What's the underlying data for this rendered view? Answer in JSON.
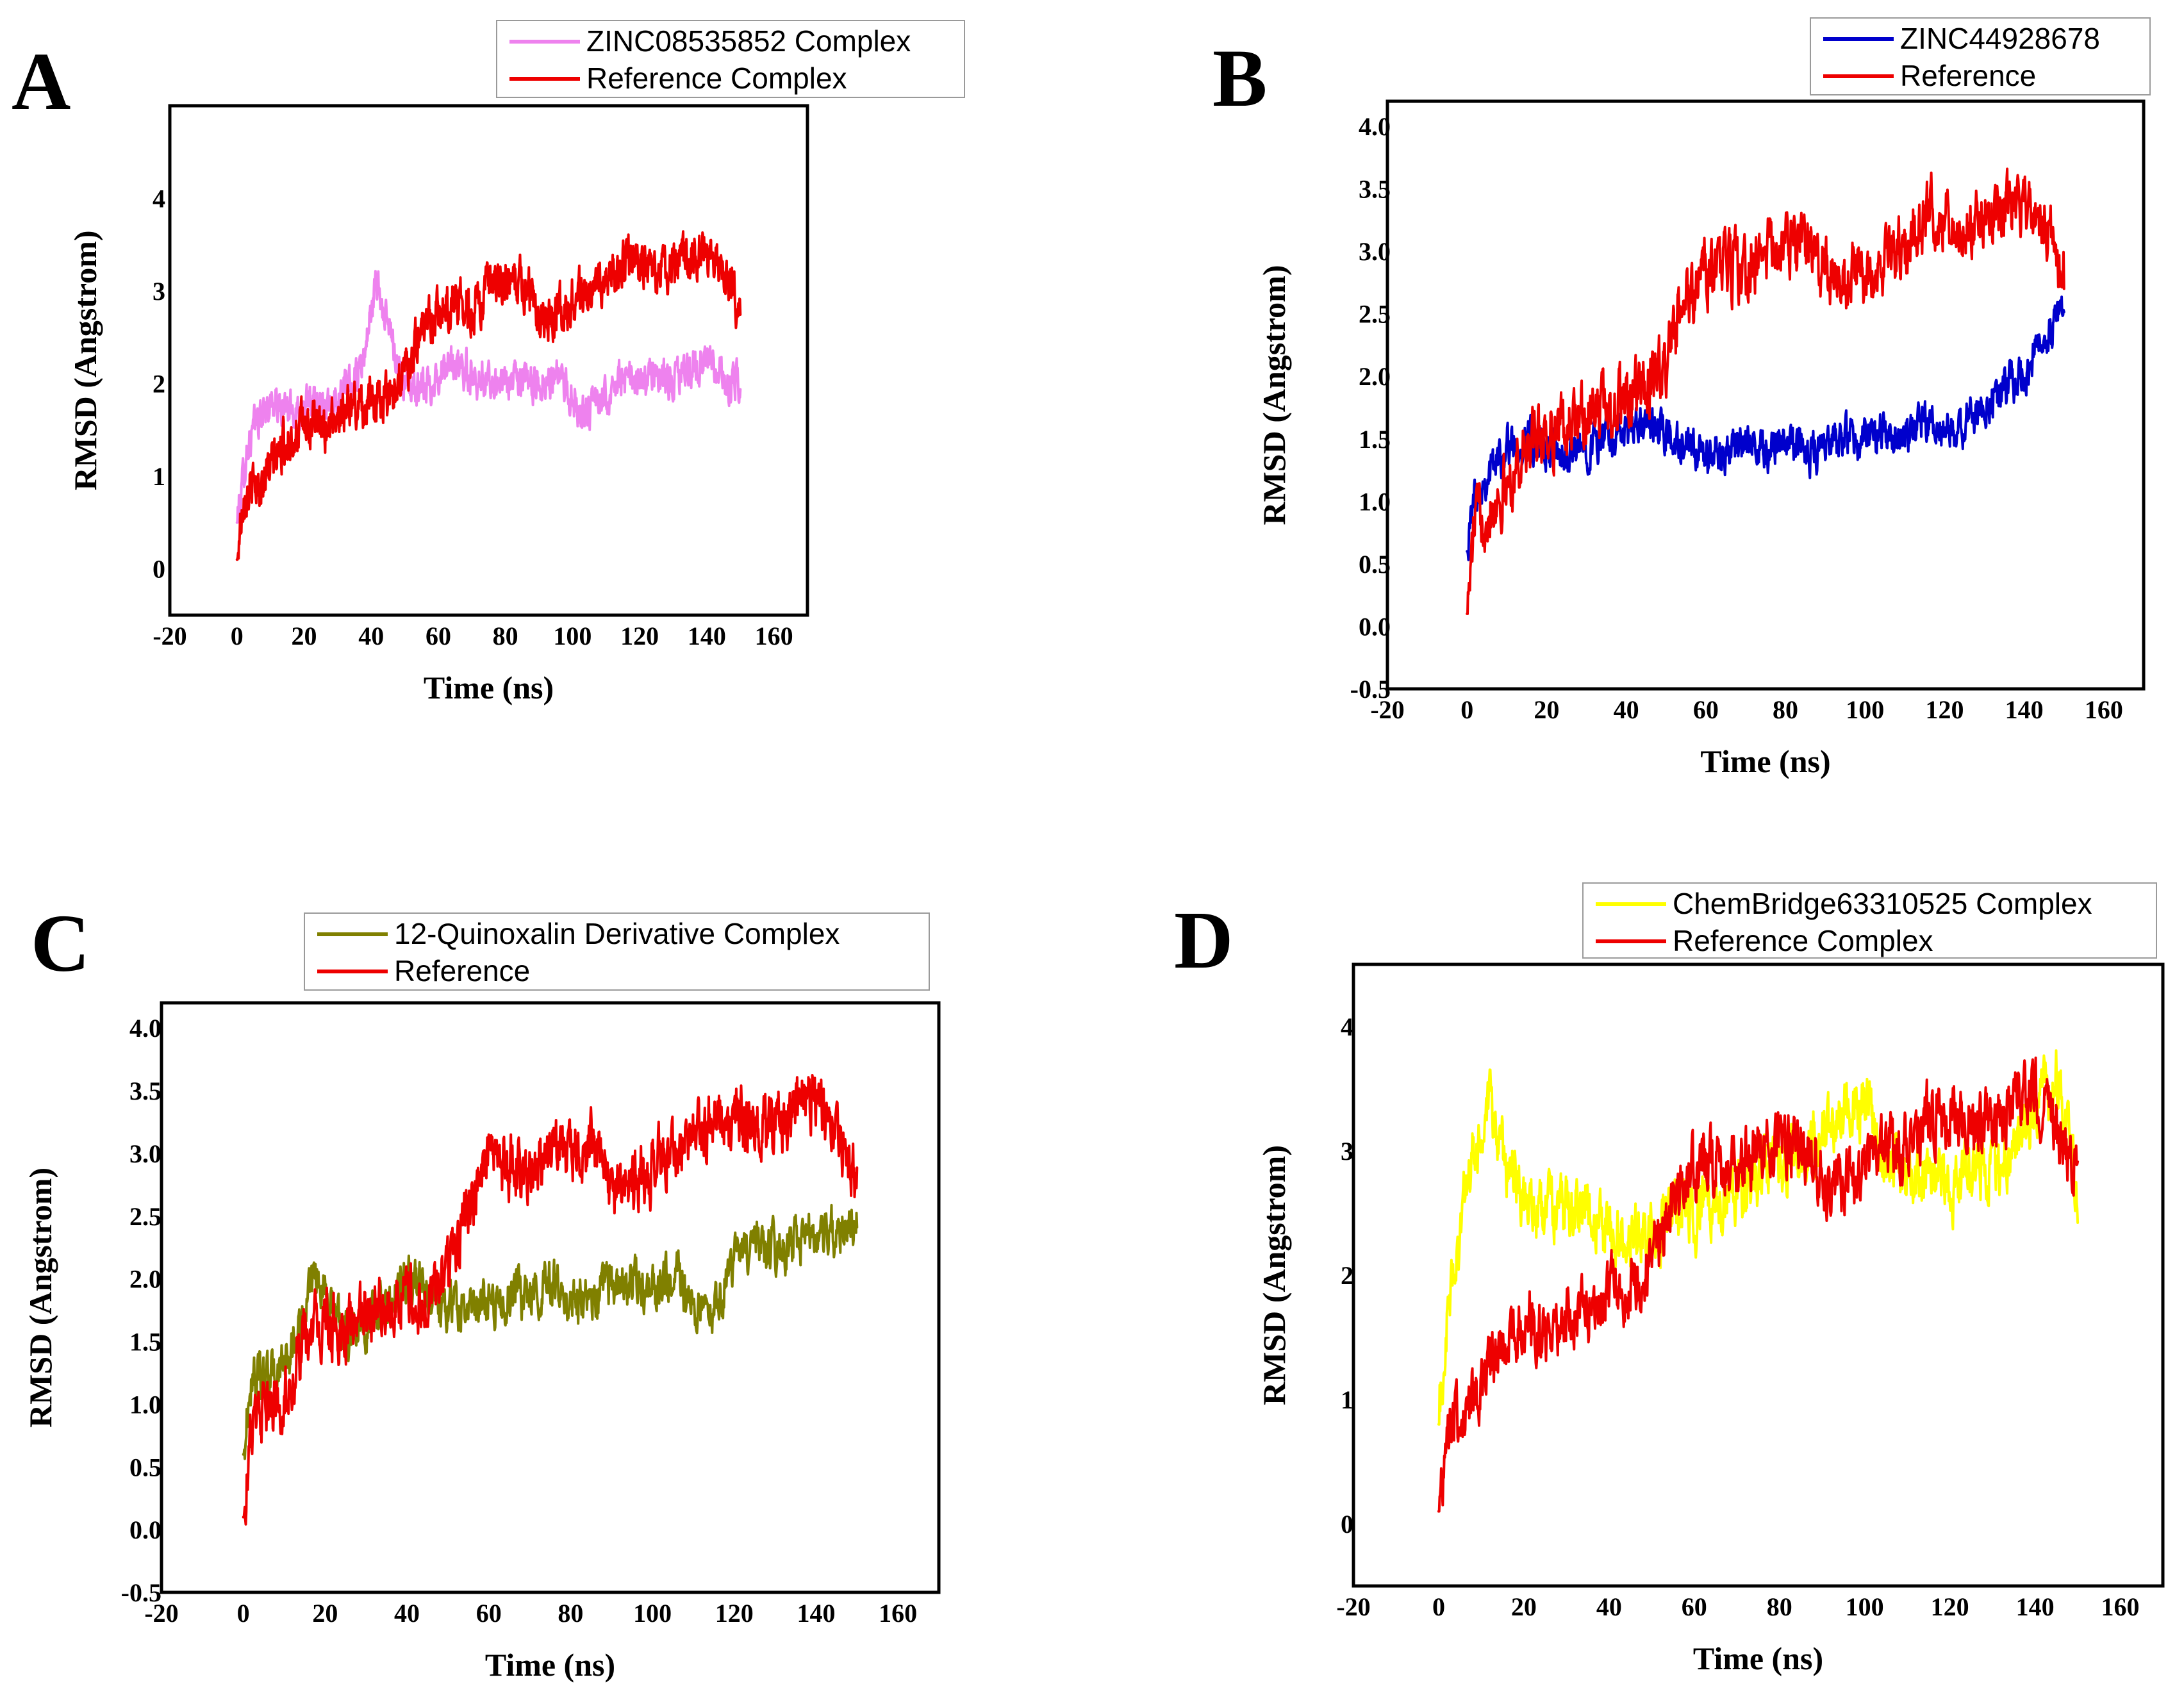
{
  "chart_data": [
    {
      "panel": "A",
      "type": "line",
      "xlabel": "Time (ns)",
      "ylabel": "RMSD (Angstrom)",
      "xlim": [
        -20,
        170
      ],
      "ylim": [
        -0.5,
        5
      ],
      "xticks": [
        "-20",
        "0",
        "20",
        "40",
        "60",
        "80",
        "100",
        "120",
        "140",
        "160"
      ],
      "yticks": [
        "0",
        "1",
        "2",
        "3",
        "4"
      ],
      "legend_position": "top-right",
      "series": [
        {
          "name": "ZINC08535852 Complex",
          "color": "#ee82ee",
          "x": [
            0,
            3,
            6,
            10,
            15,
            20,
            25,
            30,
            35,
            38,
            40,
            42,
            44,
            46,
            50,
            55,
            60,
            65,
            70,
            75,
            80,
            85,
            90,
            95,
            100,
            105,
            110,
            115,
            120,
            125,
            130,
            135,
            140,
            145,
            150
          ],
          "values": [
            0.5,
            1.3,
            1.6,
            1.8,
            1.7,
            1.75,
            1.8,
            1.85,
            2.0,
            2.3,
            2.8,
            3.1,
            2.7,
            2.5,
            2.0,
            1.9,
            2.1,
            2.2,
            2.1,
            2.0,
            2.05,
            2.0,
            2.0,
            2.1,
            1.8,
            1.7,
            1.9,
            2.05,
            2.0,
            2.1,
            2.0,
            2.15,
            2.25,
            2.0,
            2.0
          ],
          "noise": 0.16
        },
        {
          "name": "Reference Complex",
          "color": "#ee0000",
          "x": [
            0,
            2,
            5,
            10,
            15,
            20,
            25,
            30,
            35,
            40,
            45,
            50,
            55,
            60,
            65,
            70,
            75,
            80,
            85,
            90,
            95,
            100,
            105,
            110,
            115,
            120,
            125,
            130,
            135,
            140,
            145,
            150
          ],
          "values": [
            0.1,
            0.85,
            0.85,
            1.1,
            1.4,
            1.55,
            1.5,
            1.7,
            1.75,
            1.8,
            1.9,
            2.1,
            2.6,
            2.8,
            2.9,
            2.8,
            3.0,
            3.05,
            3.1,
            2.8,
            2.75,
            2.9,
            3.0,
            3.05,
            3.3,
            3.3,
            3.2,
            3.25,
            3.4,
            3.45,
            3.2,
            2.8
          ],
          "noise": 0.2
        }
      ]
    },
    {
      "panel": "B",
      "type": "line",
      "xlabel": "Time (ns)",
      "ylabel": "RMSD (Angstrom)",
      "xlim": [
        -20,
        170
      ],
      "ylim": [
        -0.5,
        4.2
      ],
      "xticks": [
        "-20",
        "0",
        "20",
        "40",
        "60",
        "80",
        "100",
        "120",
        "140",
        "160"
      ],
      "yticks": [
        "-0.5",
        "0.0",
        "0.5",
        "1.0",
        "1.5",
        "2.0",
        "2.5",
        "3.0",
        "3.5",
        "4.0"
      ],
      "legend_position": "top-right",
      "series": [
        {
          "name": "ZINC44928678",
          "color": "#0000cc",
          "x": [
            0,
            2,
            5,
            10,
            15,
            20,
            25,
            30,
            35,
            40,
            45,
            50,
            55,
            60,
            65,
            70,
            75,
            80,
            85,
            90,
            95,
            100,
            105,
            110,
            115,
            120,
            125,
            130,
            135,
            140,
            145,
            150
          ],
          "values": [
            0.6,
            1.1,
            1.2,
            1.45,
            1.5,
            1.4,
            1.35,
            1.45,
            1.5,
            1.55,
            1.6,
            1.55,
            1.4,
            1.35,
            1.4,
            1.45,
            1.4,
            1.55,
            1.4,
            1.45,
            1.5,
            1.5,
            1.55,
            1.5,
            1.6,
            1.5,
            1.6,
            1.8,
            1.9,
            2.0,
            2.3,
            2.55
          ],
          "noise": 0.13
        },
        {
          "name": "Reference",
          "color": "#ee0000",
          "x": [
            0,
            2,
            5,
            10,
            15,
            20,
            25,
            30,
            35,
            40,
            45,
            50,
            55,
            60,
            65,
            70,
            75,
            80,
            85,
            90,
            95,
            100,
            105,
            110,
            115,
            120,
            125,
            130,
            135,
            140,
            145,
            150
          ],
          "values": [
            0.1,
            0.85,
            0.95,
            1.1,
            1.45,
            1.55,
            1.6,
            1.7,
            1.75,
            1.8,
            1.9,
            2.1,
            2.6,
            2.85,
            2.9,
            2.85,
            3.0,
            3.05,
            3.1,
            2.8,
            2.75,
            2.85,
            2.95,
            3.0,
            3.3,
            3.3,
            3.2,
            3.25,
            3.35,
            3.45,
            3.2,
            2.75
          ],
          "noise": 0.2
        }
      ]
    },
    {
      "panel": "C",
      "type": "line",
      "xlabel": "Time (ns)",
      "ylabel": "RMSD (Angstrom)",
      "xlim": [
        -20,
        170
      ],
      "ylim": [
        -0.5,
        4.2
      ],
      "xticks": [
        "-20",
        "0",
        "20",
        "40",
        "60",
        "80",
        "100",
        "120",
        "140",
        "160"
      ],
      "yticks": [
        "-0.5",
        "0.0",
        "0.5",
        "1.0",
        "1.5",
        "2.0",
        "2.5",
        "3.0",
        "3.5",
        "4.0"
      ],
      "legend_position": "top-right",
      "series": [
        {
          "name": "12-Quinoxalin Derivative Complex",
          "color": "#808000",
          "x": [
            0,
            2,
            5,
            10,
            15,
            18,
            20,
            25,
            30,
            35,
            40,
            45,
            50,
            55,
            60,
            65,
            70,
            75,
            80,
            85,
            90,
            95,
            100,
            105,
            110,
            115,
            120,
            125,
            130,
            135,
            140,
            145,
            150
          ],
          "values": [
            0.6,
            1.2,
            1.2,
            1.3,
            1.7,
            2.0,
            1.9,
            1.6,
            1.65,
            1.8,
            2.0,
            1.9,
            1.8,
            1.75,
            1.8,
            1.85,
            1.9,
            2.0,
            1.8,
            1.85,
            1.95,
            2.0,
            1.9,
            2.05,
            1.8,
            1.75,
            2.1,
            2.3,
            2.25,
            2.3,
            2.35,
            2.4,
            2.45
          ],
          "noise": 0.15
        },
        {
          "name": "Reference",
          "color": "#ee0000",
          "x": [
            0,
            2,
            5,
            10,
            15,
            20,
            25,
            30,
            35,
            40,
            45,
            50,
            55,
            60,
            65,
            70,
            75,
            80,
            85,
            90,
            95,
            100,
            105,
            110,
            115,
            120,
            125,
            130,
            135,
            140,
            145,
            150
          ],
          "values": [
            0.1,
            0.8,
            0.9,
            1.05,
            1.5,
            1.65,
            1.55,
            1.7,
            1.8,
            1.85,
            1.8,
            2.1,
            2.6,
            2.9,
            2.9,
            2.85,
            3.0,
            3.05,
            3.1,
            2.75,
            2.75,
            2.9,
            3.0,
            3.1,
            3.3,
            3.3,
            3.2,
            3.25,
            3.35,
            3.45,
            3.2,
            2.75
          ],
          "noise": 0.2
        }
      ]
    },
    {
      "panel": "D",
      "type": "line",
      "xlabel": "Time (ns)",
      "ylabel": "RMSD (Angstrom)",
      "xlim": [
        -20,
        170
      ],
      "ylim": [
        -0.5,
        4.5
      ],
      "xticks": [
        "-20",
        "0",
        "20",
        "40",
        "60",
        "80",
        "100",
        "120",
        "140",
        "160"
      ],
      "yticks": [
        "0",
        "1",
        "2",
        "3",
        "4"
      ],
      "legend_position": "top-right",
      "series": [
        {
          "name": "ChemBridge63310525 Complex",
          "color": "#ffff00",
          "x": [
            0,
            2,
            5,
            8,
            12,
            15,
            20,
            25,
            30,
            35,
            40,
            45,
            50,
            55,
            60,
            65,
            70,
            75,
            80,
            85,
            90,
            95,
            100,
            105,
            110,
            115,
            120,
            125,
            130,
            135,
            140,
            145,
            150
          ],
          "values": [
            0.8,
            1.6,
            2.4,
            2.9,
            3.3,
            3.0,
            2.6,
            2.5,
            2.55,
            2.6,
            2.35,
            2.3,
            2.35,
            2.5,
            2.5,
            2.6,
            2.7,
            2.8,
            2.9,
            3.0,
            3.1,
            3.3,
            3.4,
            2.9,
            2.8,
            2.9,
            2.7,
            2.8,
            2.85,
            3.0,
            3.3,
            3.6,
            2.7
          ],
          "noise": 0.2
        },
        {
          "name": "Reference Complex",
          "color": "#ee0000",
          "x": [
            0,
            2,
            5,
            10,
            15,
            20,
            25,
            30,
            35,
            40,
            45,
            50,
            55,
            60,
            65,
            70,
            75,
            80,
            85,
            90,
            95,
            100,
            105,
            110,
            115,
            120,
            125,
            130,
            135,
            140,
            145,
            150
          ],
          "values": [
            0.1,
            0.8,
            0.85,
            1.05,
            1.45,
            1.6,
            1.55,
            1.7,
            1.75,
            1.85,
            1.9,
            2.1,
            2.6,
            2.85,
            2.9,
            2.85,
            3.0,
            3.05,
            3.1,
            2.75,
            2.75,
            2.9,
            3.0,
            3.05,
            3.3,
            3.3,
            3.2,
            3.25,
            3.35,
            3.45,
            3.2,
            2.75
          ],
          "noise": 0.2
        }
      ]
    }
  ]
}
